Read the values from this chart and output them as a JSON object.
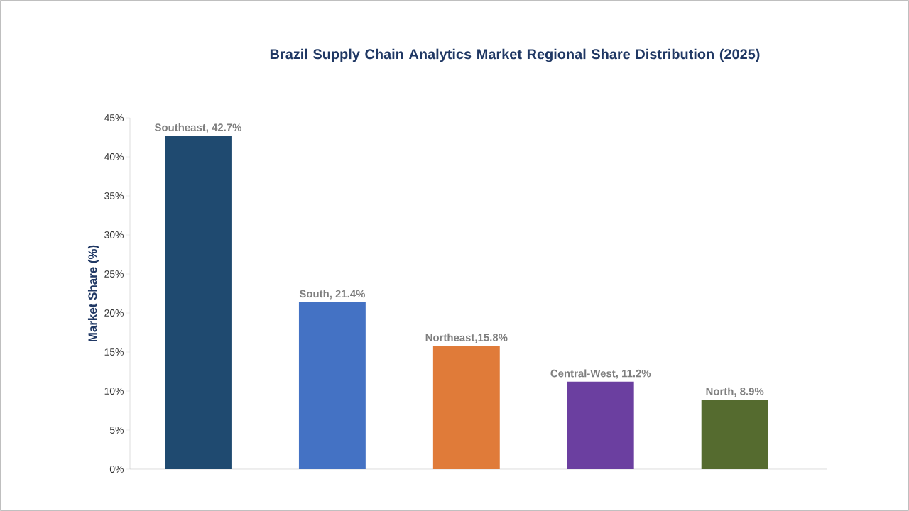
{
  "chart_data": {
    "type": "bar",
    "title": "Brazil Supply Chain Analytics Market Regional Share Distribution (2025)",
    "ylabel": "Market Share (%)",
    "categories": [
      null,
      null,
      null,
      null,
      null
    ],
    "values": [
      42.7,
      21.4,
      15.8,
      11.2,
      8.9
    ],
    "value_labels": [
      "Southeast, 42.7%",
      "South, 21.4%",
      "Northeast,15.8%",
      "Central-West, 11.2%",
      "North, 8.9%"
    ],
    "colors": [
      "#1f4a70",
      "#4472c4",
      "#e07b39",
      "#6b3fa0",
      "#556b2f"
    ],
    "ylim": [
      0,
      45
    ],
    "yticks": [
      {
        "value": 0,
        "label": "0%"
      },
      {
        "value": 5,
        "label": "5%"
      },
      {
        "value": 10,
        "label": "10%"
      },
      {
        "value": 15,
        "label": "15%"
      },
      {
        "value": 20,
        "label": "20%"
      },
      {
        "value": 25,
        "label": "25%"
      },
      {
        "value": 30,
        "label": "30%"
      },
      {
        "value": 35,
        "label": "35%"
      },
      {
        "value": 40,
        "label": "40%"
      },
      {
        "value": 45,
        "label": "45%"
      }
    ],
    "grid": false
  }
}
